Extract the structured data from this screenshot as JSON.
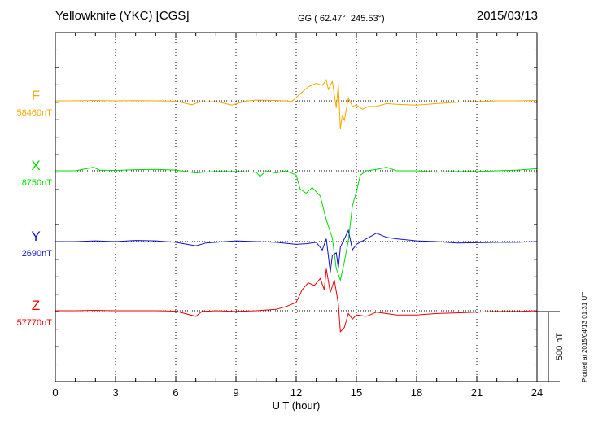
{
  "header": {
    "station": "Yellowknife (YKC)  [CGS]",
    "coords": "GG ( 62.47°, 245.53°)",
    "date": "2015/03/13"
  },
  "plotted_note": "Plotted at 2015/04/13 01:31  UT",
  "scale_label": "500 nT",
  "chart_data": {
    "type": "line",
    "xlabel": "U T (hour)",
    "xlim": [
      0,
      24
    ],
    "xticks": [
      "0",
      "3",
      "6",
      "9",
      "12",
      "15",
      "18",
      "21",
      "24"
    ],
    "y_unit": "nT",
    "scale_bar_nT": 500,
    "grid": true,
    "series": [
      {
        "name": "F",
        "baseline_label": "58460nT",
        "color": "#f5a800",
        "points": [
          [
            0,
            0
          ],
          [
            1,
            0
          ],
          [
            2,
            3
          ],
          [
            3,
            0
          ],
          [
            4,
            2
          ],
          [
            5,
            0
          ],
          [
            6,
            -3
          ],
          [
            6.8,
            -28
          ],
          [
            7.2,
            -8
          ],
          [
            8,
            -5
          ],
          [
            8.8,
            -30
          ],
          [
            9.5,
            -2
          ],
          [
            10,
            5
          ],
          [
            11,
            3
          ],
          [
            11.8,
            -3
          ],
          [
            12.2,
            50
          ],
          [
            12.6,
            100
          ],
          [
            13,
            125
          ],
          [
            13.3,
            110
          ],
          [
            13.5,
            150
          ],
          [
            13.6,
            80
          ],
          [
            13.8,
            140
          ],
          [
            14,
            -50
          ],
          [
            14.1,
            120
          ],
          [
            14.2,
            -200
          ],
          [
            14.3,
            -100
          ],
          [
            14.4,
            -140
          ],
          [
            14.6,
            20
          ],
          [
            14.8,
            -40
          ],
          [
            15,
            -30
          ],
          [
            15.3,
            -60
          ],
          [
            15.6,
            -40
          ],
          [
            16,
            -40
          ],
          [
            16.5,
            -20
          ],
          [
            17,
            -25
          ],
          [
            18,
            -30
          ],
          [
            19,
            -20
          ],
          [
            20,
            -10
          ],
          [
            21,
            -5
          ],
          [
            22,
            0
          ],
          [
            23,
            0
          ],
          [
            24,
            3
          ]
        ]
      },
      {
        "name": "X",
        "baseline_label": "8750nT",
        "color": "#00dd00",
        "points": [
          [
            0,
            0
          ],
          [
            1,
            0
          ],
          [
            1.9,
            25
          ],
          [
            2.2,
            5
          ],
          [
            3,
            3
          ],
          [
            4,
            8
          ],
          [
            5,
            10
          ],
          [
            6,
            5
          ],
          [
            7,
            -15
          ],
          [
            7.5,
            -8
          ],
          [
            8,
            -5
          ],
          [
            9,
            -5
          ],
          [
            10,
            -10
          ],
          [
            10.2,
            -40
          ],
          [
            10.5,
            0
          ],
          [
            11,
            -15
          ],
          [
            11.5,
            0
          ],
          [
            12,
            -30
          ],
          [
            12.2,
            -130
          ],
          [
            12.5,
            -160
          ],
          [
            12.8,
            -120
          ],
          [
            13.2,
            -180
          ],
          [
            13.5,
            -350
          ],
          [
            13.8,
            -480
          ],
          [
            14,
            -700
          ],
          [
            14.2,
            -780
          ],
          [
            14.4,
            -650
          ],
          [
            14.6,
            -500
          ],
          [
            14.8,
            -250
          ],
          [
            15,
            -150
          ],
          [
            15.2,
            -30
          ],
          [
            15.5,
            0
          ],
          [
            16,
            10
          ],
          [
            16.5,
            25
          ],
          [
            17,
            0
          ],
          [
            18,
            0
          ],
          [
            19,
            -10
          ],
          [
            20,
            -5
          ],
          [
            21,
            -5
          ],
          [
            22,
            0
          ],
          [
            23,
            5
          ],
          [
            24,
            15
          ]
        ]
      },
      {
        "name": "Y",
        "baseline_label": "2690nT",
        "color": "#1010cc",
        "points": [
          [
            0,
            0
          ],
          [
            1,
            0
          ],
          [
            2,
            5
          ],
          [
            3,
            0
          ],
          [
            4,
            8
          ],
          [
            5,
            5
          ],
          [
            6,
            -5
          ],
          [
            7,
            -30
          ],
          [
            7.5,
            -10
          ],
          [
            8,
            -5
          ],
          [
            9,
            5
          ],
          [
            10,
            0
          ],
          [
            11,
            -5
          ],
          [
            12,
            -20
          ],
          [
            12.5,
            -15
          ],
          [
            13,
            -5
          ],
          [
            13.3,
            -60
          ],
          [
            13.5,
            20
          ],
          [
            13.7,
            -220
          ],
          [
            13.8,
            -100
          ],
          [
            14,
            -80
          ],
          [
            14.1,
            -190
          ],
          [
            14.2,
            -40
          ],
          [
            14.4,
            20
          ],
          [
            14.6,
            80
          ],
          [
            14.8,
            -60
          ],
          [
            15,
            -20
          ],
          [
            15.5,
            20
          ],
          [
            16,
            60
          ],
          [
            16.5,
            30
          ],
          [
            17,
            20
          ],
          [
            18,
            5
          ],
          [
            19,
            0
          ],
          [
            20,
            -10
          ],
          [
            21,
            -8
          ],
          [
            22,
            -5
          ],
          [
            23,
            -5
          ],
          [
            24,
            0
          ]
        ]
      },
      {
        "name": "Z",
        "baseline_label": "57770nT",
        "color": "#ee0000",
        "points": [
          [
            0,
            0
          ],
          [
            1,
            0
          ],
          [
            2,
            3
          ],
          [
            3,
            0
          ],
          [
            4,
            0
          ],
          [
            5,
            0
          ],
          [
            6,
            -3
          ],
          [
            7,
            -40
          ],
          [
            7.3,
            -5
          ],
          [
            8,
            0
          ],
          [
            9,
            -5
          ],
          [
            10,
            0
          ],
          [
            11,
            10
          ],
          [
            11.5,
            30
          ],
          [
            12,
            60
          ],
          [
            12.3,
            150
          ],
          [
            12.6,
            200
          ],
          [
            12.9,
            180
          ],
          [
            13.2,
            230
          ],
          [
            13.4,
            150
          ],
          [
            13.5,
            300
          ],
          [
            13.7,
            130
          ],
          [
            13.9,
            220
          ],
          [
            14.1,
            50
          ],
          [
            14.2,
            -150
          ],
          [
            14.4,
            -120
          ],
          [
            14.6,
            -20
          ],
          [
            14.8,
            -60
          ],
          [
            15,
            -30
          ],
          [
            15.5,
            -40
          ],
          [
            16,
            -10
          ],
          [
            17,
            -30
          ],
          [
            18,
            -30
          ],
          [
            19,
            -20
          ],
          [
            20,
            -15
          ],
          [
            21,
            -10
          ],
          [
            22,
            -5
          ],
          [
            23,
            -5
          ],
          [
            24,
            0
          ]
        ]
      }
    ]
  }
}
